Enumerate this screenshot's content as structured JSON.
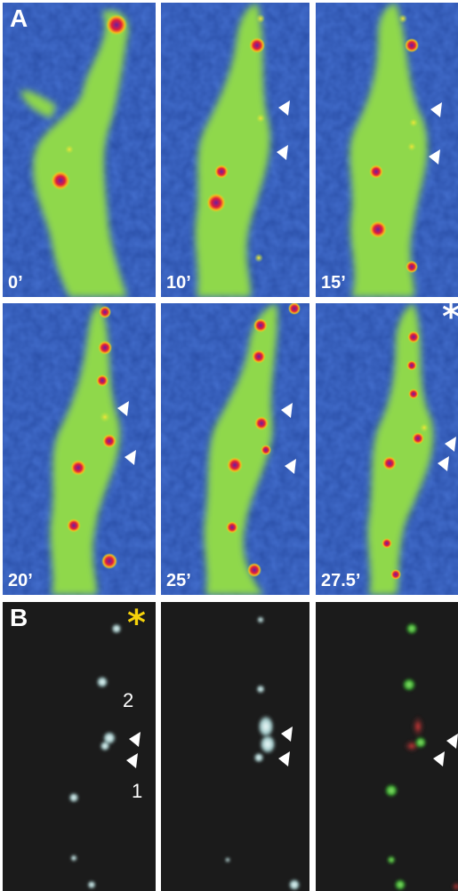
{
  "panelA": {
    "letter": "A",
    "frames": [
      {
        "time": "0’"
      },
      {
        "time": "10’"
      },
      {
        "time": "15’"
      },
      {
        "time": "20’"
      },
      {
        "time": "25’"
      },
      {
        "time": "27.5’"
      }
    ],
    "asterisk": "*"
  },
  "panelB": {
    "letter": "B",
    "asterisk": "*",
    "label_2": "2",
    "label_1": "1"
  },
  "colors": {
    "background_blue": "#2a4fa8",
    "dendrite_green": "#8dd64a",
    "spine_red": "#d8203a",
    "dark_background": "#1b1b1b",
    "signal_green": "#3dbb2e",
    "signal_red": "#c81e1e",
    "asterisk_yellow": "#f5d20a"
  }
}
